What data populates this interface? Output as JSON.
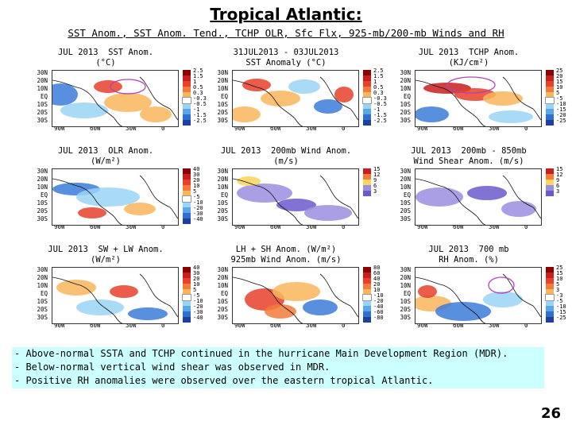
{
  "title": "Tropical Atlantic:",
  "subtitle": "SST Anom., SST Anom. Tend., TCHP OLR, Sfc Flx, 925-mb/200-mb Winds and RH",
  "latitude_labels": [
    "30N",
    "20N",
    "10N",
    "EQ",
    "10S",
    "20S",
    "30S"
  ],
  "longitude_labels": [
    "90W",
    "60W",
    "30W",
    "0"
  ],
  "panels": [
    {
      "title": "JUL 2013  SST Anom.\n(°C)",
      "colorbar_ticks": [
        "2.5",
        "1.5",
        "1",
        "0.5",
        "0.3",
        "-0.3",
        "-0.5",
        "-1",
        "-1.5",
        "-2.5"
      ]
    },
    {
      "title": "31JUL2013 - 03JUL2013\nSST Anomaly (°C)",
      "colorbar_ticks": [
        "2.5",
        "1.5",
        "1",
        "0.5",
        "0.3",
        "-0.3",
        "-0.5",
        "-1",
        "-1.5",
        "-2.5"
      ]
    },
    {
      "title": "JUL 2013  TCHP Anom.\n(KJ/cm²)",
      "colorbar_ticks": [
        "25",
        "20",
        "15",
        "10",
        "5",
        "-5",
        "-10",
        "-15",
        "-20",
        "-25"
      ]
    },
    {
      "title": "JUL 2013  OLR Anom.\n(W/m²)",
      "colorbar_ticks": [
        "40",
        "30",
        "20",
        "10",
        "5",
        "-5",
        "-10",
        "-20",
        "-30",
        "-40"
      ]
    },
    {
      "title": "JUL 2013  200mb Wind Anom.\n(m/s)",
      "colorbar_ticks": [
        "15",
        "12",
        "9",
        "6",
        "3"
      ]
    },
    {
      "title": "JUL 2013  200mb - 850mb\nWind Shear Anom. (m/s)",
      "colorbar_ticks": [
        "15",
        "12",
        "9",
        "6",
        "3"
      ]
    },
    {
      "title": "JUL 2013  SW + LW Anom.\n(W/m²)",
      "colorbar_ticks": [
        "40",
        "30",
        "20",
        "10",
        "5",
        "-5",
        "-10",
        "-20",
        "-30",
        "-40"
      ]
    },
    {
      "title": "LH + SH Anom. (W/m²)\n925mb Wind Anom. (m/s)",
      "colorbar_ticks": [
        "80",
        "60",
        "40",
        "20",
        "10",
        "-10",
        "-20",
        "-40",
        "-60",
        "-80"
      ]
    },
    {
      "title": "JUL 2013  700 mb\nRH Anom. (%)",
      "colorbar_ticks": [
        "25",
        "15",
        "10",
        "5",
        "3",
        "-3",
        "-5",
        "-10",
        "-15",
        "-25"
      ]
    }
  ],
  "notes": [
    "- Above-normal SSTA and TCHP continued in the hurricane Main Development Region (MDR).",
    "- Below-normal vertical wind shear was observed  in MDR.",
    "- Positive RH anomalies were observed over the eastern tropical Atlantic."
  ],
  "page_number": "26",
  "colors": {
    "notes_background": "#ccffff",
    "warm": "#e8402a",
    "cool": "#3b7bd8",
    "circle": "#b044b4"
  }
}
